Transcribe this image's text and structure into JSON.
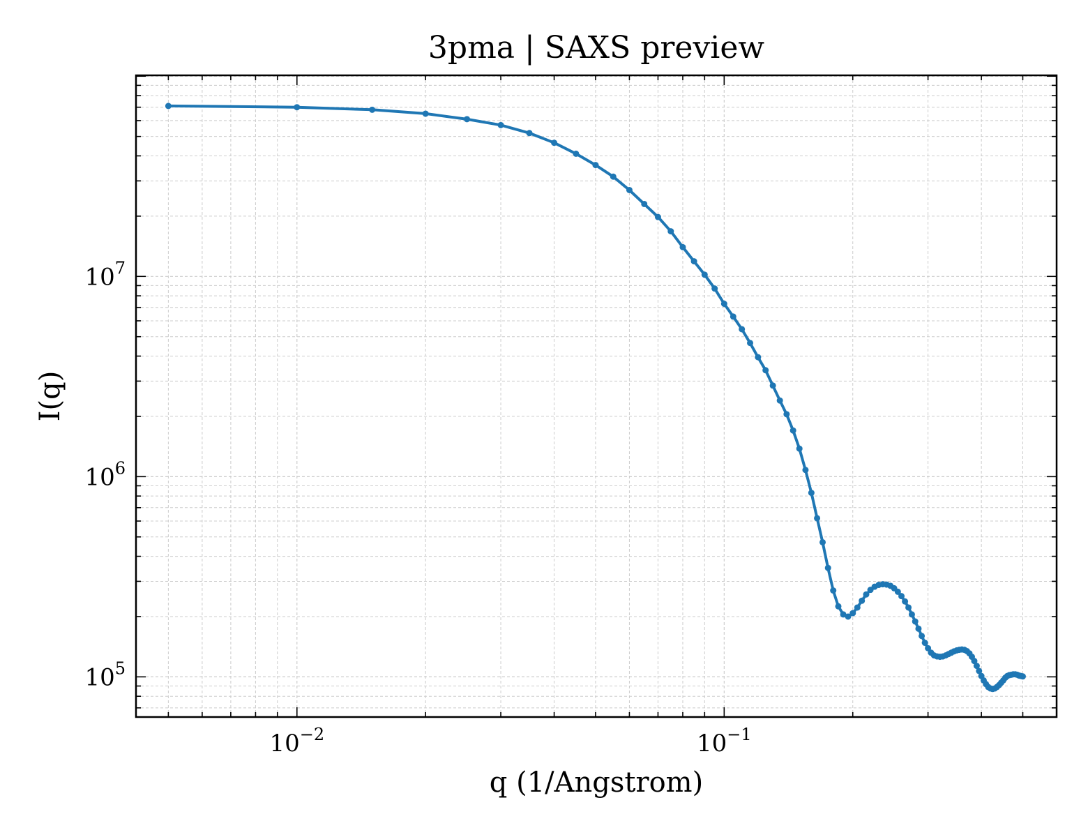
{
  "chart_data": {
    "type": "line",
    "title": "3pma | SAXS preview",
    "xlabel": "q (1/Angstrom)",
    "ylabel": "I(q)",
    "xscale": "log",
    "yscale": "log",
    "xlim": [
      0.0042,
      0.6
    ],
    "ylim": [
      63000,
      101000000
    ],
    "grid": true,
    "x_ticks": [
      {
        "value": 0.01,
        "base": "10",
        "exp": "−2"
      },
      {
        "value": 0.1,
        "base": "10",
        "exp": "−1"
      }
    ],
    "y_ticks": [
      {
        "value": 100000,
        "base": "10",
        "exp": "5"
      },
      {
        "value": 1000000,
        "base": "10",
        "exp": "6"
      },
      {
        "value": 10000000,
        "base": "10",
        "exp": "7"
      }
    ],
    "series": [
      {
        "color": "#1f77b4",
        "x": [
          0.005,
          0.01,
          0.015,
          0.02,
          0.025,
          0.03,
          0.035,
          0.04,
          0.045,
          0.05,
          0.055,
          0.06,
          0.065,
          0.07,
          0.075,
          0.08,
          0.085,
          0.09,
          0.095,
          0.1,
          0.105,
          0.11,
          0.115,
          0.12,
          0.125,
          0.13,
          0.135,
          0.14,
          0.145,
          0.15,
          0.155,
          0.16,
          0.165,
          0.17,
          0.175,
          0.18,
          0.185,
          0.19,
          0.195,
          0.2,
          0.205,
          0.21,
          0.215,
          0.22,
          0.225,
          0.23,
          0.235,
          0.24,
          0.245,
          0.25,
          0.255,
          0.26,
          0.265,
          0.27,
          0.275,
          0.28,
          0.285,
          0.29,
          0.295,
          0.3,
          0.305,
          0.31,
          0.315,
          0.32,
          0.325,
          0.33,
          0.335,
          0.34,
          0.345,
          0.35,
          0.355,
          0.36,
          0.365,
          0.37,
          0.375,
          0.38,
          0.385,
          0.39,
          0.395,
          0.4,
          0.405,
          0.41,
          0.415,
          0.42,
          0.425,
          0.43,
          0.435,
          0.44,
          0.445,
          0.45,
          0.455,
          0.46,
          0.465,
          0.47,
          0.475,
          0.48,
          0.485,
          0.49,
          0.495,
          0.5
        ],
        "y": [
          71000000,
          70000000,
          68000000,
          65000000,
          61000000,
          57000000,
          52000000,
          46500000,
          41000000,
          36000000,
          31500000,
          27000000,
          23000000,
          19800000,
          16800000,
          14000000,
          11900000,
          10200000,
          8700000,
          7300000,
          6300000,
          5450000,
          4650000,
          3950000,
          3400000,
          2850000,
          2400000,
          2050000,
          1700000,
          1380000,
          1080000,
          830000,
          620000,
          470000,
          350000,
          270000,
          225000,
          205000,
          200000,
          208000,
          222000,
          240000,
          258000,
          272000,
          282000,
          288000,
          290000,
          289000,
          285000,
          277000,
          266000,
          253000,
          238000,
          222000,
          205000,
          189000,
          174000,
          160000,
          148000,
          139000,
          132000,
          128000,
          126500,
          126000,
          126500,
          128000,
          130000,
          132000,
          134000,
          135500,
          136500,
          137000,
          136500,
          134500,
          131000,
          126000,
          120000,
          113500,
          107000,
          101000,
          96000,
          92000,
          89000,
          87500,
          87000,
          87500,
          89000,
          91000,
          93500,
          96000,
          99000,
          101000,
          102000,
          102500,
          103000,
          103000,
          102500,
          101500,
          101000,
          100500
        ]
      }
    ]
  }
}
